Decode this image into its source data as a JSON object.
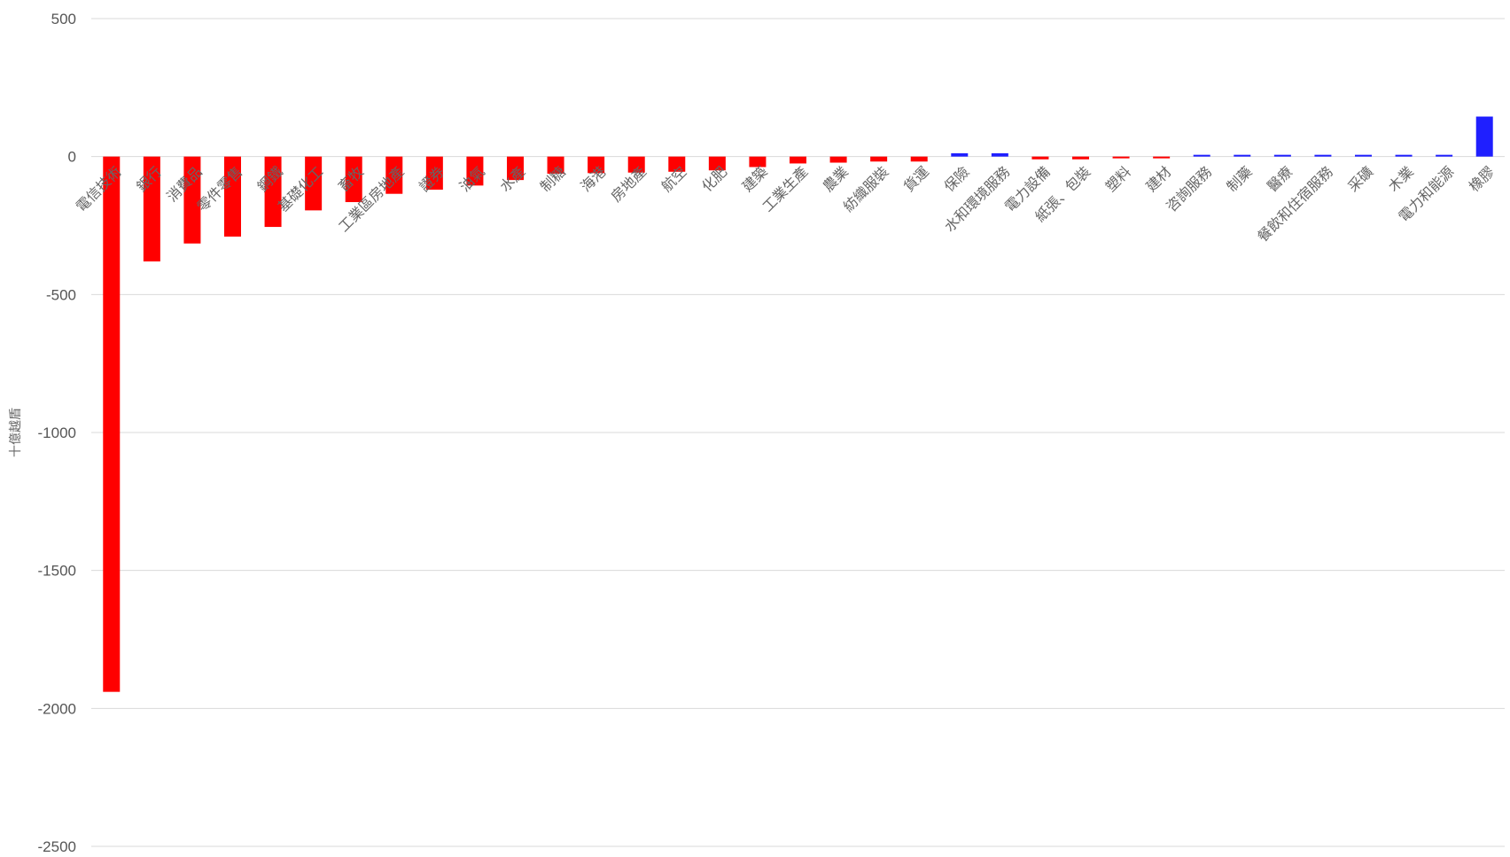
{
  "chart_data": {
    "type": "bar",
    "title": "",
    "xlabel": "",
    "ylabel": "十億越盾",
    "ylim": [
      -2500,
      500
    ],
    "yticks": [
      500,
      0,
      -500,
      -1000,
      -1500,
      -2000,
      -2500
    ],
    "grid": true,
    "legend": "none",
    "categories": [
      "電信技術",
      "銀行",
      "消費品",
      "零件零售",
      "鋼鐵",
      "基礎化工",
      "畜牧",
      "工業區房地產",
      "證券",
      "油氣",
      "水產",
      "制糖",
      "海港",
      "房地產",
      "航空",
      "化肥",
      "建築",
      "工業生產",
      "農業",
      "紡織服裝",
      "貨運",
      "保險",
      "水和環境服務",
      "電力設備",
      "紙張、包裝",
      "塑料",
      "建材",
      "咨詢服務",
      "制藥",
      "醫療",
      "餐飲和住宿服務",
      "采礦",
      "木業",
      "電力和能源",
      "橡膠"
    ],
    "values": [
      -1940,
      -380,
      -315,
      -290,
      -255,
      -195,
      -165,
      -135,
      -120,
      -105,
      -85,
      -62,
      -60,
      -58,
      -55,
      -50,
      -38,
      -25,
      -22,
      -18,
      -18,
      12,
      12,
      -10,
      -10,
      -5,
      -4,
      3,
      2,
      2,
      2,
      2,
      2,
      2,
      145
    ],
    "colors": {
      "negative": "#ff0000",
      "positive": "#1f1fff"
    }
  }
}
